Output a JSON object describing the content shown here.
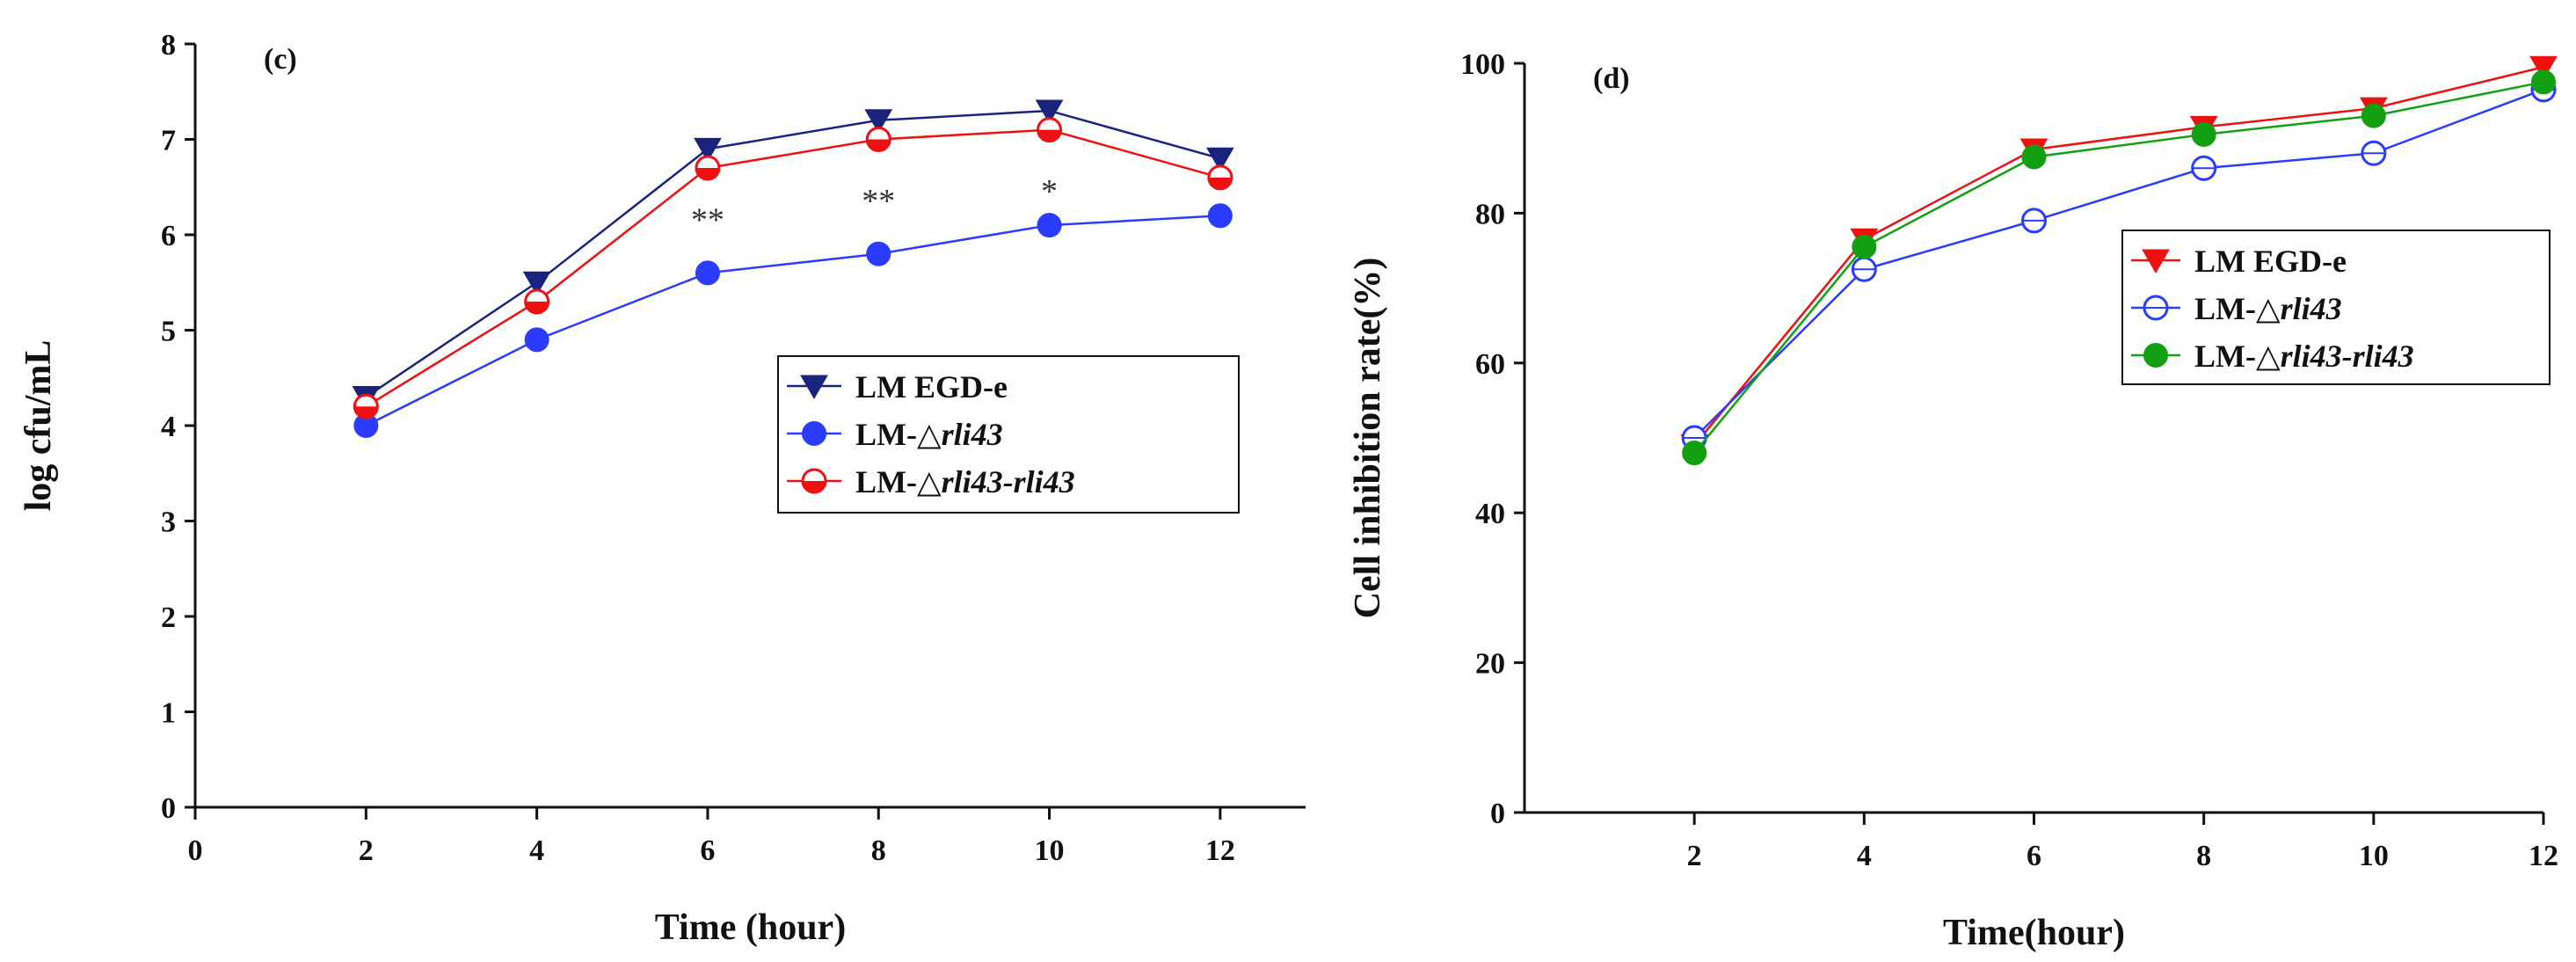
{
  "chart_data": [
    {
      "type": "line",
      "panel_label": "(c)",
      "xlabel": "Time (hour)",
      "ylabel": "log cfu/mL",
      "xlim": [
        0,
        13
      ],
      "ylim": [
        0,
        8
      ],
      "xticks": [
        0,
        2,
        4,
        6,
        8,
        10,
        12
      ],
      "yticks": [
        0,
        1,
        2,
        3,
        4,
        5,
        6,
        7,
        8
      ],
      "x": [
        2,
        4,
        6,
        8,
        10,
        12
      ],
      "legend_position": "center-right",
      "series": [
        {
          "name": "LM EGD-e",
          "name_prefix": "LM EGD-e",
          "name_italic": "",
          "color": "#1a237e",
          "marker": "triangle-down",
          "values": [
            4.3,
            5.5,
            6.9,
            7.2,
            7.3,
            6.8
          ]
        },
        {
          "name": "LM-△rli43",
          "name_prefix": "LM-",
          "name_italic": "△rli43",
          "color": "#2b3cff",
          "marker": "circle-filled",
          "values": [
            4.0,
            4.9,
            5.6,
            5.8,
            6.1,
            6.2
          ]
        },
        {
          "name": "LM-△rli43-rli43",
          "name_prefix": "LM-",
          "name_italic": "△rli43-rli43",
          "color": "#ee1111",
          "marker": "circle-half",
          "values": [
            4.2,
            5.3,
            6.7,
            7.0,
            7.1,
            6.6
          ]
        }
      ],
      "annotations": [
        {
          "x": 6,
          "y": 6.15,
          "text": "**"
        },
        {
          "x": 8,
          "y": 6.35,
          "text": "**"
        },
        {
          "x": 10,
          "y": 6.45,
          "text": "*"
        }
      ]
    },
    {
      "type": "line",
      "panel_label": "(d)",
      "xlabel": "Time(hour)",
      "ylabel": "Cell inhibition rate(%)",
      "xlim": [
        0,
        12
      ],
      "ylim": [
        0,
        100
      ],
      "xticks": [
        2,
        4,
        6,
        8,
        10,
        12
      ],
      "yticks": [
        0,
        20,
        40,
        60,
        80,
        100
      ],
      "x": [
        2,
        4,
        6,
        8,
        10,
        12
      ],
      "legend_position": "top-right",
      "series": [
        {
          "name": "LM EGD-e",
          "name_prefix": "LM EGD-e",
          "name_italic": "",
          "color": "#ee1111",
          "marker": "triangle-down",
          "values": [
            49,
            76.5,
            88.5,
            91.5,
            94,
            99.5
          ]
        },
        {
          "name": "LM-△rli43",
          "name_prefix": "LM-",
          "name_italic": "△rli43",
          "color": "#2b3cff",
          "marker": "circle-open",
          "values": [
            50,
            72.5,
            79,
            86,
            88,
            96.5
          ]
        },
        {
          "name": "LM-△rli43-rli43",
          "name_prefix": "LM-",
          "name_italic": "△rli43-rli43",
          "color": "#12a012",
          "marker": "circle-filled",
          "values": [
            48,
            75.5,
            87.5,
            90.5,
            93,
            97.5
          ]
        }
      ]
    }
  ]
}
